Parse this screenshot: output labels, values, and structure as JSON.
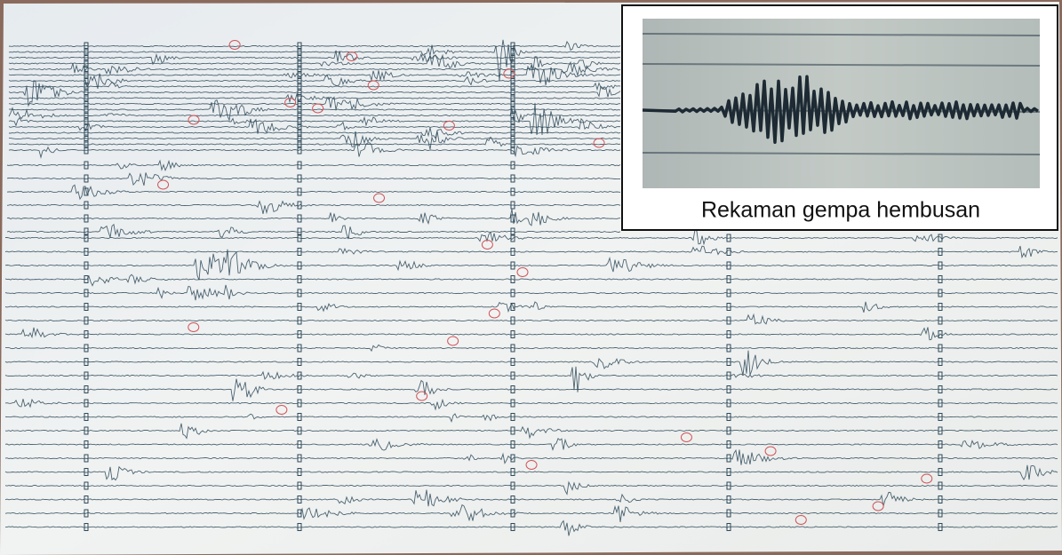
{
  "inset": {
    "caption": "Rekaman gempa hembusan"
  }
}
